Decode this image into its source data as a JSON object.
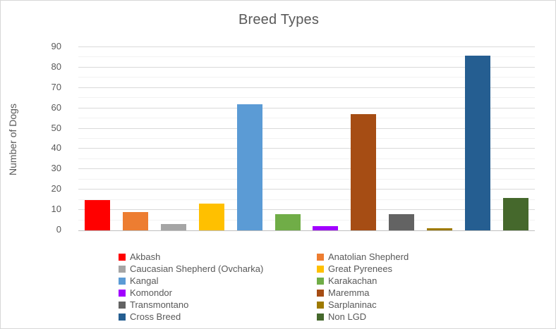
{
  "chart_data": {
    "type": "bar",
    "title": "Breed Types",
    "xlabel": "",
    "ylabel": "Number of Dogs",
    "categories": [
      "Akbash",
      "Anatolian Shepherd",
      "Caucasian Shepherd (Ovcharka)",
      "Great Pyrenees",
      "Kangal",
      "Karakachan",
      "Komondor",
      "Maremma",
      "Transmontano",
      "Sarplaninac",
      "Cross Breed",
      "Non LGD"
    ],
    "values": [
      15,
      9,
      3,
      13,
      62,
      8,
      2,
      57,
      8,
      1,
      86,
      16
    ],
    "colors": [
      "#FF0000",
      "#ED7D31",
      "#A5A5A5",
      "#FFC000",
      "#5B9BD5",
      "#70AD47",
      "#A100FF",
      "#A64D14",
      "#636363",
      "#9E7A00",
      "#255E91",
      "#45682C"
    ],
    "ylim": [
      0,
      90
    ],
    "yticks": [
      0,
      10,
      20,
      30,
      40,
      50,
      60,
      70,
      80,
      90
    ],
    "minor_grid_step": 5,
    "grid": true,
    "legend_position": "bottom",
    "legend_columns": 2
  },
  "style_colors": {
    "text": "#595959",
    "axis_line": "#BFBFBF",
    "major_gridline": "#D9D9D9",
    "minor_gridline": "#F2F2F2",
    "background": "#FFFFFF"
  }
}
